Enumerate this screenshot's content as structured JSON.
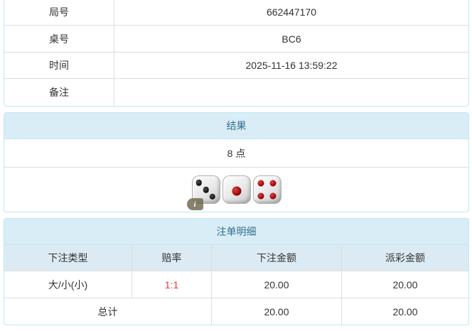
{
  "info_table": {
    "rows": [
      {
        "label": "局号",
        "value": "662447170"
      },
      {
        "label": "桌号",
        "value": "BC6"
      },
      {
        "label": "时间",
        "value": "2025-11-16 13:59:22"
      },
      {
        "label": "备注",
        "value": ""
      }
    ]
  },
  "result_panel": {
    "title": "结果",
    "points": "8 点",
    "info_badge": "i",
    "dice": [
      {
        "value": 3,
        "color": "black"
      },
      {
        "value": 1,
        "color": "red"
      },
      {
        "value": 4,
        "color": "red"
      }
    ]
  },
  "bets_panel": {
    "title": "注单明细",
    "columns": [
      "下注类型",
      "赔率",
      "下注金额",
      "派彩金额"
    ],
    "rows": [
      {
        "type": "大/小(小)",
        "odds": "1:1",
        "bet_amount": "20.00",
        "payout": "20.00"
      }
    ],
    "total": {
      "label": "总计",
      "bet_amount": "20.00",
      "payout": "20.00"
    }
  },
  "colors": {
    "panel_border": "#bce8f1",
    "heading_bg": "#d9edf7",
    "heading_text": "#31708f",
    "column_header_bg": "#dcebf3",
    "inner_border": "#dddddd",
    "odds_red": "#e4393c",
    "text": "#333333"
  }
}
